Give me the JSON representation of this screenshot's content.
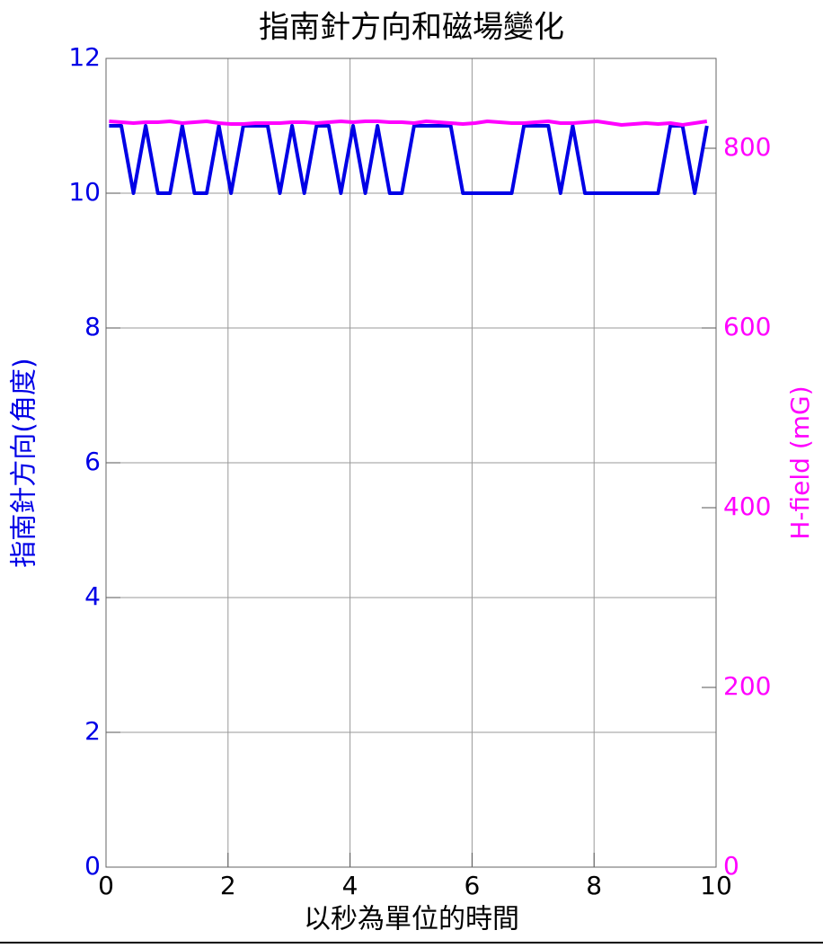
{
  "chart_data": {
    "type": "line",
    "title": "指南針方向和磁場變化",
    "x_label": "以秒為單位的時間",
    "y_label": "指南針方向(角度)",
    "y2_label": "H-field (mG)",
    "x": [
      0.05,
      0.25,
      0.45,
      0.65,
      0.85,
      1.05,
      1.25,
      1.45,
      1.65,
      1.85,
      2.05,
      2.25,
      2.45,
      2.65,
      2.85,
      3.05,
      3.25,
      3.45,
      3.65,
      3.85,
      4.05,
      4.25,
      4.45,
      4.65,
      4.85,
      5.05,
      5.25,
      5.45,
      5.65,
      5.85,
      6.05,
      6.25,
      6.45,
      6.65,
      6.85,
      7.05,
      7.25,
      7.45,
      7.65,
      7.85,
      8.05,
      8.25,
      8.45,
      8.65,
      8.85,
      9.05,
      9.25,
      9.45,
      9.65,
      9.85
    ],
    "series": [
      {
        "name": "指南針方向(角度)",
        "color": "#0000e6",
        "axis": "y",
        "values": [
          11,
          11,
          10,
          11,
          10,
          10,
          11,
          10,
          10,
          11,
          10,
          11,
          11,
          11,
          10,
          11,
          10,
          11,
          11,
          10,
          11,
          10,
          11,
          10,
          10,
          11,
          11,
          11,
          11,
          10,
          10,
          10,
          10,
          10,
          11,
          11,
          11,
          10,
          11,
          10,
          10,
          10,
          10,
          10,
          10,
          10,
          11,
          11,
          10,
          11
        ]
      },
      {
        "name": "H-field (mG)",
        "color": "#ff00ff",
        "axis": "y2",
        "values": [
          830,
          829,
          828,
          829,
          829,
          830,
          828,
          829,
          830,
          828,
          827,
          827,
          828,
          828,
          828,
          829,
          829,
          828,
          829,
          830,
          829,
          830,
          830,
          829,
          829,
          828,
          830,
          829,
          828,
          827,
          828,
          830,
          829,
          828,
          828,
          829,
          830,
          828,
          828,
          829,
          830,
          828,
          826,
          827,
          828,
          827,
          828,
          826,
          828,
          830
        ]
      }
    ],
    "xlim": [
      0,
      10
    ],
    "xticks": [
      0,
      2,
      4,
      6,
      8,
      10
    ],
    "ylim": [
      0,
      12
    ],
    "yticks": [
      0,
      2,
      4,
      6,
      8,
      10,
      12
    ],
    "y2lim": [
      0,
      900
    ],
    "y2ticks": [
      0,
      200,
      400,
      600,
      800
    ],
    "grid": true
  }
}
